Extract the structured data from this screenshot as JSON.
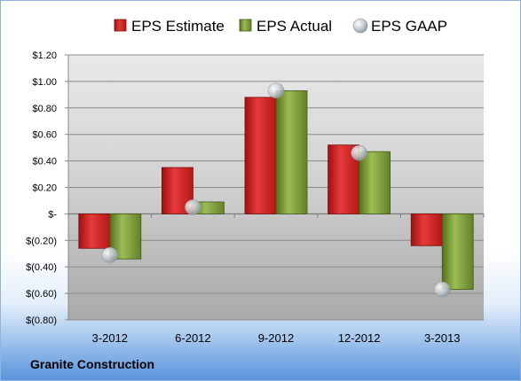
{
  "chart_data": {
    "type": "bar",
    "title": "",
    "xlabel": "",
    "ylabel": "",
    "categories": [
      "3-2012",
      "6-2012",
      "9-2012",
      "12-2012",
      "3-2013"
    ],
    "series": [
      {
        "name": "EPS Estimate",
        "type": "bar",
        "color": "#cc1f1f",
        "values": [
          -0.26,
          0.35,
          0.88,
          0.52,
          -0.24
        ]
      },
      {
        "name": "EPS Actual",
        "type": "bar",
        "color": "#6e8f2a",
        "values": [
          -0.34,
          0.09,
          0.93,
          0.47,
          -0.57
        ]
      },
      {
        "name": "EPS GAAP",
        "type": "marker",
        "color": "#b9c2c9",
        "values": [
          -0.31,
          0.05,
          0.93,
          0.46,
          -0.57
        ]
      }
    ],
    "ylim": [
      -0.8,
      1.2
    ],
    "yticks": [
      1.2,
      1.0,
      0.8,
      0.6,
      0.4,
      0.2,
      0.0,
      -0.2,
      -0.4,
      -0.6,
      -0.8
    ],
    "ytick_labels": [
      "$1.20",
      "$1.00",
      "$0.80",
      "$0.60",
      "$0.40",
      "$0.20",
      "$-",
      "$(0.20)",
      "$(0.40)",
      "$(0.60)",
      "$(0.80)"
    ],
    "grid": true,
    "legend_position": "top"
  },
  "company_name": "Granite Construction"
}
